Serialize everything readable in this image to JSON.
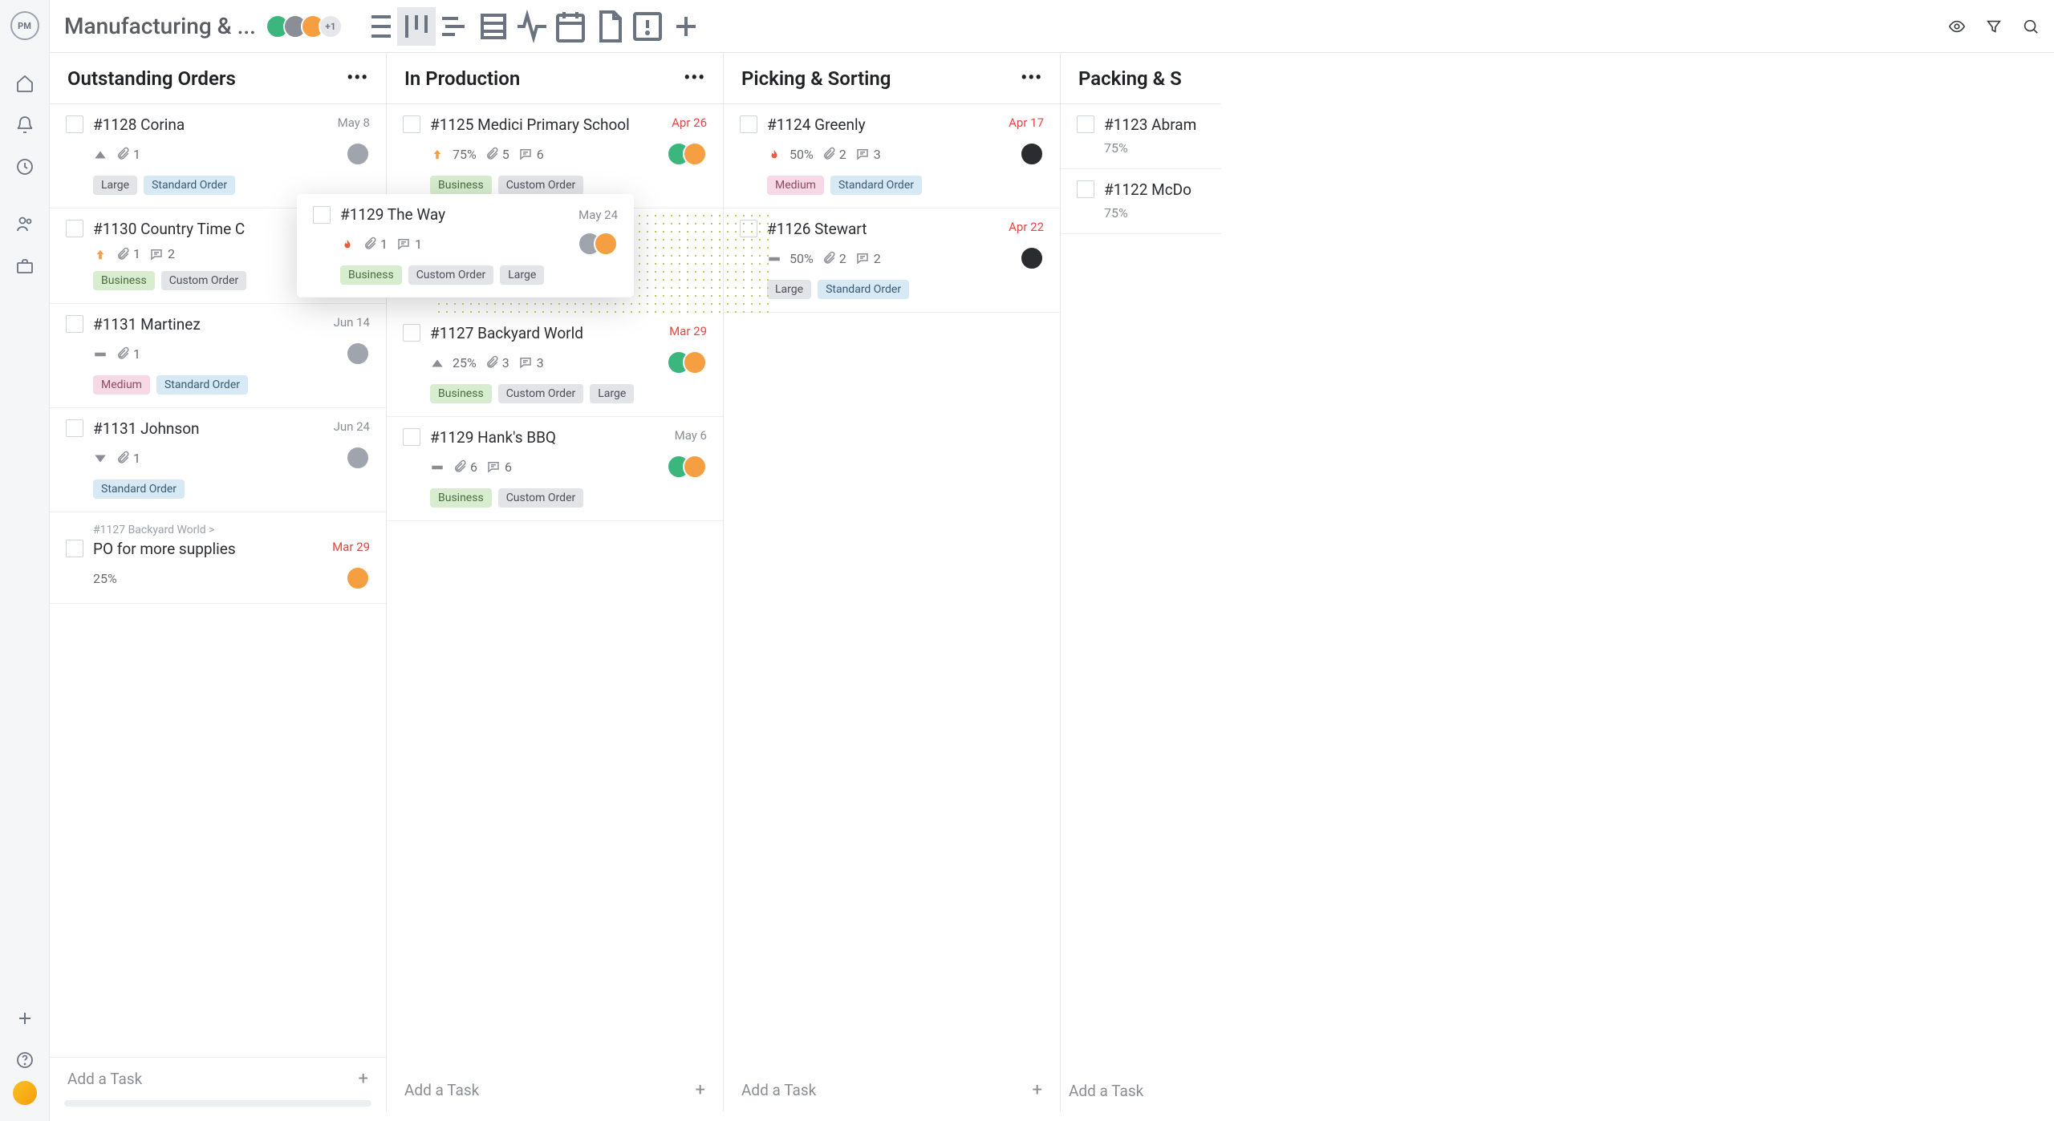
{
  "logo": "PM",
  "header": {
    "title": "Manufacturing & ...",
    "avatar_more": "+1",
    "avatar_colors": [
      "#3bb77e",
      "#8b8e96",
      "#f59e42"
    ]
  },
  "columns": [
    {
      "title": "Outstanding Orders",
      "add_label": "Add a Task",
      "cards": [
        {
          "title": "#1128 Corina",
          "date": "May 8",
          "date_red": false,
          "priority": "up-gray",
          "attach": "1",
          "comments": null,
          "progress": null,
          "tags": [
            {
              "t": "Large",
              "c": "gray"
            },
            {
              "t": "Standard Order",
              "c": "blue"
            }
          ],
          "avatars": [
            "photo1"
          ]
        },
        {
          "title": "#1130 Country Time C",
          "date": "",
          "date_red": false,
          "priority": "up-orange",
          "attach": "1",
          "comments": "2",
          "progress": null,
          "tags": [
            {
              "t": "Business",
              "c": "green"
            },
            {
              "t": "Custom Order",
              "c": "gray"
            }
          ],
          "avatars": []
        },
        {
          "title": "#1131 Martinez",
          "date": "Jun 14",
          "date_red": false,
          "priority": "dash",
          "attach": "1",
          "comments": null,
          "progress": null,
          "tags": [
            {
              "t": "Medium",
              "c": "pink"
            },
            {
              "t": "Standard Order",
              "c": "blue"
            }
          ],
          "avatars": [
            "photo1"
          ]
        },
        {
          "title": "#1131 Johnson",
          "date": "Jun 24",
          "date_red": false,
          "priority": "down-gray",
          "attach": "1",
          "comments": null,
          "progress": null,
          "tags": [
            {
              "t": "Standard Order",
              "c": "blue"
            }
          ],
          "avatars": [
            "photo1"
          ]
        },
        {
          "parent": "#1127 Backyard World >",
          "title": "PO for more supplies",
          "date": "Mar 29",
          "date_red": true,
          "priority": null,
          "attach": null,
          "comments": null,
          "progress": "25%",
          "tags": [],
          "avatars": [
            "orange"
          ]
        }
      ]
    },
    {
      "title": "In Production",
      "add_label": "Add a Task",
      "cards": [
        {
          "title": "#1125 Medici Primary School",
          "date": "Apr 26",
          "date_red": true,
          "priority": "up-orange",
          "attach": "5",
          "comments": "6",
          "progress": "75%",
          "tags": [
            {
              "t": "Business",
              "c": "green"
            },
            {
              "t": "Custom Order",
              "c": "gray"
            }
          ],
          "avatars": [
            "green",
            "orange"
          ]
        },
        {
          "title": "#1127 Backyard World",
          "date": "Mar 29",
          "date_red": true,
          "priority": "up-gray",
          "attach": "3",
          "comments": "3",
          "progress": "25%",
          "tags": [
            {
              "t": "Business",
              "c": "green"
            },
            {
              "t": "Custom Order",
              "c": "gray"
            },
            {
              "t": "Large",
              "c": "gray"
            }
          ],
          "avatars": [
            "green",
            "orange"
          ]
        },
        {
          "title": "#1129 Hank's BBQ",
          "date": "May 6",
          "date_red": false,
          "priority": "dash",
          "attach": "6",
          "comments": "6",
          "progress": null,
          "tags": [
            {
              "t": "Business",
              "c": "green"
            },
            {
              "t": "Custom Order",
              "c": "gray"
            }
          ],
          "avatars": [
            "green",
            "orange"
          ]
        }
      ]
    },
    {
      "title": "Picking & Sorting",
      "add_label": "Add a Task",
      "cards": [
        {
          "title": "#1124 Greenly",
          "date": "Apr 17",
          "date_red": true,
          "priority": "fire",
          "attach": "2",
          "comments": "3",
          "progress": "50%",
          "tags": [
            {
              "t": "Medium",
              "c": "pink"
            },
            {
              "t": "Standard Order",
              "c": "blue"
            }
          ],
          "avatars": [
            "dark"
          ]
        },
        {
          "title": "#1126 Stewart",
          "date": "Apr 22",
          "date_red": true,
          "priority": "dash",
          "attach": "2",
          "comments": "2",
          "progress": "50%",
          "tags": [
            {
              "t": "Large",
              "c": "gray"
            },
            {
              "t": "Standard Order",
              "c": "blue"
            }
          ],
          "avatars": [
            "dark"
          ]
        }
      ]
    },
    {
      "title": "Packing & S",
      "add_label": "Add a Task",
      "cards": [
        {
          "title": "#1123 Abram",
          "date": "",
          "date_red": false,
          "priority": null,
          "attach": null,
          "comments": null,
          "progress": "75%",
          "tags": [],
          "avatars": []
        },
        {
          "title": "#1122 McDo",
          "date": "",
          "date_red": false,
          "priority": null,
          "attach": null,
          "comments": null,
          "progress": "75%",
          "tags": [],
          "avatars": []
        }
      ]
    }
  ],
  "dragged": {
    "title": "#1129 The Way",
    "date": "May 24",
    "priority": "fire",
    "attach": "1",
    "comments": "1",
    "tags": [
      {
        "t": "Business",
        "c": "green"
      },
      {
        "t": "Custom Order",
        "c": "gray"
      },
      {
        "t": "Large",
        "c": "gray"
      }
    ],
    "avatars": [
      "photo1",
      "orange"
    ]
  },
  "colors": {
    "avatar_map": {
      "photo1": "#a0a4ad",
      "green": "#3bb77e",
      "orange": "#f59e42",
      "dark": "#2a2c30"
    }
  }
}
